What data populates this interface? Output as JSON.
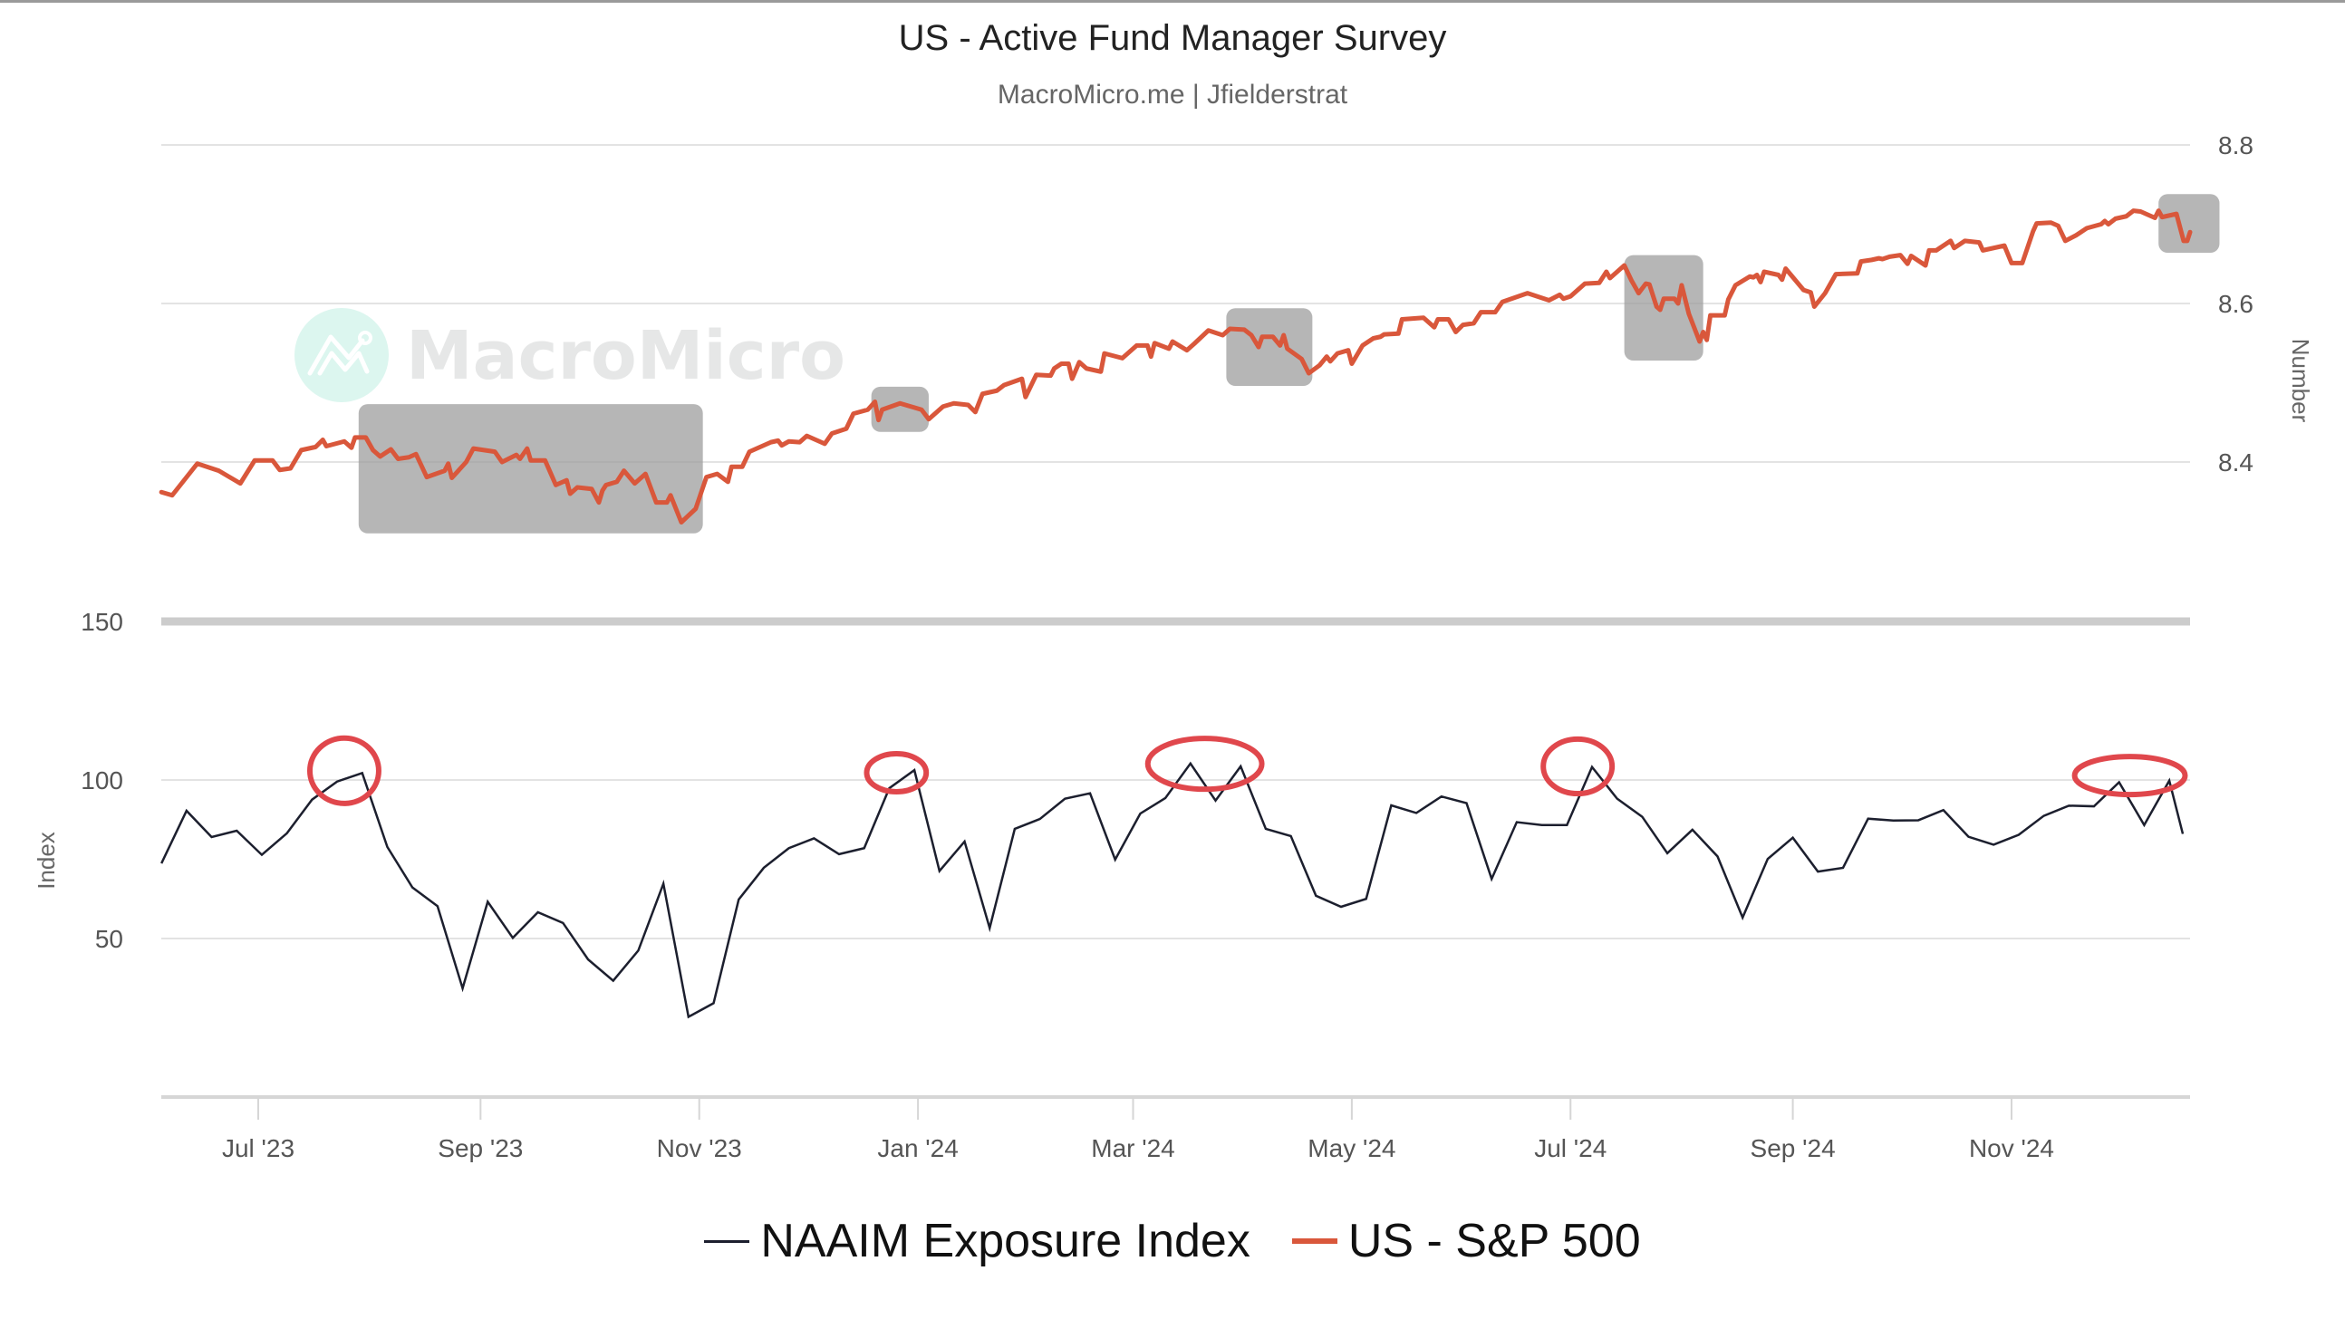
{
  "header": {
    "title": "US - Active Fund Manager Survey",
    "subtitle": "MacroMicro.me | Jfielderstrat"
  },
  "watermark": {
    "text": "MacroMicro",
    "icon": "macromicro-logo-icon"
  },
  "legend": [
    {
      "label": "NAAIM Exposure Index",
      "color": "#1c1f2e"
    },
    {
      "label": "US - S&P 500",
      "color": "#d9573b"
    }
  ],
  "chart_data": {
    "type": "line",
    "title": "US - Active Fund Manager Survey",
    "subtitle": "MacroMicro.me | Jfielderstrat",
    "x_axis": {
      "type": "date",
      "origin_date": "2023-07-01",
      "unit": "days since origin_date",
      "range_days": [
        -27,
        540
      ],
      "ticks": [
        {
          "label": "Jul '23",
          "day": 0
        },
        {
          "label": "Sep '23",
          "day": 62
        },
        {
          "label": "Nov '23",
          "day": 123
        },
        {
          "label": "Jan '24",
          "day": 184
        },
        {
          "label": "Mar '24",
          "day": 244
        },
        {
          "label": "May '24",
          "day": 305
        },
        {
          "label": "Jul '24",
          "day": 366
        },
        {
          "label": "Sep '24",
          "day": 428
        },
        {
          "label": "Nov '24",
          "day": 489
        }
      ]
    },
    "panes": [
      {
        "name": "top",
        "axis_side": "right",
        "ylabel": "Number",
        "ylim": [
          8.3,
          8.8
        ],
        "yticks": [
          {
            "label": "8.8",
            "value": 8.8
          },
          {
            "label": "8.6",
            "value": 8.6
          },
          {
            "label": "8.4",
            "value": 8.4
          }
        ],
        "grid": true
      },
      {
        "name": "bottom",
        "axis_side": "left",
        "ylabel": "Index",
        "ylim": [
          0,
          150
        ],
        "yticks": [
          {
            "label": "150",
            "value": 150
          },
          {
            "label": "100",
            "value": 100
          },
          {
            "label": "50",
            "value": 50
          }
        ],
        "grid": true
      }
    ],
    "series": [
      {
        "name": "NAAIM Exposure Index",
        "pane": "bottom",
        "color": "#1c1f2e",
        "start_day": -27,
        "step_days": 7,
        "values": [
          73.7,
          90.3,
          82.0,
          84.0,
          76.4,
          83.2,
          93.8,
          99.5,
          102.2,
          78.9,
          66.1,
          60.2,
          34.3,
          61.6,
          50.2,
          58.3,
          54.9,
          43.4,
          36.7,
          46.2,
          67.3,
          25.3,
          29.6,
          62.3,
          72.3,
          78.5,
          81.6,
          76.6,
          78.5,
          97.4,
          103.1,
          71.3,
          80.6,
          53.3,
          84.6,
          87.7,
          94.1,
          95.8,
          74.9,
          89.4,
          94.3,
          105.2,
          93.5,
          104.3,
          84.6,
          82.3,
          63.5,
          60.0,
          62.5,
          92.0,
          89.6,
          94.8,
          92.7,
          68.8,
          86.7,
          85.8,
          85.8,
          104.1,
          94.1,
          88.4,
          76.9,
          84.3,
          75.9,
          56.6,
          75.1,
          81.8,
          71.1,
          72.3,
          87.8,
          87.2,
          87.3,
          90.5,
          82.1,
          79.6,
          82.7,
          88.7,
          91.9,
          91.7,
          99.3,
          85.8,
          99.8,
          83.0
        ]
      },
      {
        "name": "US - S&P 500",
        "pane": "top",
        "color": "#d9573b",
        "points": [
          [
            -27,
            8.362
          ],
          [
            -24,
            8.358
          ],
          [
            -17,
            8.398
          ],
          [
            -11,
            8.389
          ],
          [
            -5,
            8.373
          ],
          [
            -1,
            8.402
          ],
          [
            4,
            8.402
          ],
          [
            6,
            8.39
          ],
          [
            9,
            8.392
          ],
          [
            12,
            8.415
          ],
          [
            16,
            8.419
          ],
          [
            18,
            8.428
          ],
          [
            19,
            8.42
          ],
          [
            24,
            8.426
          ],
          [
            26,
            8.418
          ],
          [
            27,
            8.431
          ],
          [
            30,
            8.431
          ],
          [
            32,
            8.415
          ],
          [
            34,
            8.407
          ],
          [
            37,
            8.416
          ],
          [
            39,
            8.404
          ],
          [
            42,
            8.406
          ],
          [
            44,
            8.41
          ],
          [
            47,
            8.381
          ],
          [
            52,
            8.389
          ],
          [
            53,
            8.398
          ],
          [
            54,
            8.38
          ],
          [
            58,
            8.4
          ],
          [
            60,
            8.417
          ],
          [
            66,
            8.413
          ],
          [
            68,
            8.4
          ],
          [
            72,
            8.409
          ],
          [
            73,
            8.404
          ],
          [
            75,
            8.417
          ],
          [
            76,
            8.402
          ],
          [
            80,
            8.402
          ],
          [
            83,
            8.371
          ],
          [
            86,
            8.377
          ],
          [
            87,
            8.36
          ],
          [
            89,
            8.368
          ],
          [
            93,
            8.366
          ],
          [
            95,
            8.349
          ],
          [
            96,
            8.364
          ],
          [
            97,
            8.371
          ],
          [
            100,
            8.375
          ],
          [
            102,
            8.389
          ],
          [
            105,
            8.373
          ],
          [
            108,
            8.385
          ],
          [
            111,
            8.349
          ],
          [
            114,
            8.349
          ],
          [
            115,
            8.358
          ],
          [
            118,
            8.324
          ],
          [
            122,
            8.341
          ],
          [
            125,
            8.381
          ],
          [
            128,
            8.385
          ],
          [
            131,
            8.375
          ],
          [
            132,
            8.394
          ],
          [
            135,
            8.394
          ],
          [
            137,
            8.413
          ],
          [
            140,
            8.419
          ],
          [
            143,
            8.425
          ],
          [
            145,
            8.427
          ],
          [
            146,
            8.421
          ],
          [
            148,
            8.426
          ],
          [
            151,
            8.425
          ],
          [
            153,
            8.433
          ],
          [
            158,
            8.423
          ],
          [
            160,
            8.436
          ],
          [
            164,
            8.442
          ],
          [
            166,
            8.461
          ],
          [
            170,
            8.466
          ],
          [
            172,
            8.476
          ],
          [
            173,
            8.453
          ],
          [
            174,
            8.466
          ],
          [
            179,
            8.474
          ],
          [
            185,
            8.466
          ],
          [
            187,
            8.454
          ],
          [
            191,
            8.47
          ],
          [
            194,
            8.474
          ],
          [
            198,
            8.472
          ],
          [
            200,
            8.463
          ],
          [
            202,
            8.486
          ],
          [
            206,
            8.49
          ],
          [
            208,
            8.497
          ],
          [
            213,
            8.505
          ],
          [
            214,
            8.482
          ],
          [
            217,
            8.51
          ],
          [
            221,
            8.509
          ],
          [
            222,
            8.518
          ],
          [
            224,
            8.524
          ],
          [
            226,
            8.524
          ],
          [
            227,
            8.505
          ],
          [
            229,
            8.526
          ],
          [
            231,
            8.518
          ],
          [
            235,
            8.514
          ],
          [
            236,
            8.537
          ],
          [
            241,
            8.531
          ],
          [
            242,
            8.535
          ],
          [
            245,
            8.547
          ],
          [
            248,
            8.547
          ],
          [
            249,
            8.533
          ],
          [
            250,
            8.55
          ],
          [
            254,
            8.543
          ],
          [
            255,
            8.552
          ],
          [
            259,
            8.541
          ],
          [
            261,
            8.549
          ],
          [
            265,
            8.566
          ],
          [
            269,
            8.56
          ],
          [
            271,
            8.568
          ],
          [
            275,
            8.567
          ],
          [
            277,
            8.56
          ],
          [
            279,
            8.545
          ],
          [
            280,
            8.558
          ],
          [
            283,
            8.558
          ],
          [
            285,
            8.547
          ],
          [
            286,
            8.56
          ],
          [
            287,
            8.543
          ],
          [
            291,
            8.53
          ],
          [
            293,
            8.512
          ],
          [
            296,
            8.522
          ],
          [
            298,
            8.533
          ],
          [
            299,
            8.527
          ],
          [
            301,
            8.537
          ],
          [
            304,
            8.541
          ],
          [
            305,
            8.524
          ],
          [
            308,
            8.547
          ],
          [
            311,
            8.556
          ],
          [
            313,
            8.558
          ],
          [
            314,
            8.561
          ],
          [
            318,
            8.562
          ],
          [
            319,
            8.58
          ],
          [
            325,
            8.582
          ],
          [
            328,
            8.57
          ],
          [
            329,
            8.58
          ],
          [
            332,
            8.58
          ],
          [
            334,
            8.564
          ],
          [
            336,
            8.573
          ],
          [
            339,
            8.575
          ],
          [
            341,
            8.589
          ],
          [
            345,
            8.589
          ],
          [
            347,
            8.602
          ],
          [
            354,
            8.613
          ],
          [
            360,
            8.604
          ],
          [
            363,
            8.611
          ],
          [
            364,
            8.606
          ],
          [
            366,
            8.609
          ],
          [
            370,
            8.625
          ],
          [
            374,
            8.626
          ],
          [
            376,
            8.64
          ],
          [
            377,
            8.632
          ],
          [
            381,
            8.648
          ],
          [
            383,
            8.629
          ],
          [
            385,
            8.613
          ],
          [
            387,
            8.625
          ],
          [
            388,
            8.624
          ],
          [
            390,
            8.596
          ],
          [
            391,
            8.592
          ],
          [
            392,
            8.606
          ],
          [
            395,
            8.606
          ],
          [
            396,
            8.6
          ],
          [
            397,
            8.623
          ],
          [
            399,
            8.587
          ],
          [
            402,
            8.552
          ],
          [
            403,
            8.564
          ],
          [
            404,
            8.554
          ],
          [
            405,
            8.585
          ],
          [
            409,
            8.585
          ],
          [
            410,
            8.605
          ],
          [
            412,
            8.623
          ],
          [
            416,
            8.634
          ],
          [
            417,
            8.633
          ],
          [
            418,
            8.636
          ],
          [
            419,
            8.627
          ],
          [
            420,
            8.64
          ],
          [
            424,
            8.636
          ],
          [
            425,
            8.63
          ],
          [
            426,
            8.644
          ],
          [
            431,
            8.617
          ],
          [
            433,
            8.614
          ],
          [
            434,
            8.596
          ],
          [
            437,
            8.613
          ],
          [
            440,
            8.637
          ],
          [
            446,
            8.638
          ],
          [
            447,
            8.653
          ],
          [
            450,
            8.655
          ],
          [
            452,
            8.657
          ],
          [
            453,
            8.656
          ],
          [
            455,
            8.659
          ],
          [
            458,
            8.661
          ],
          [
            460,
            8.65
          ],
          [
            461,
            8.66
          ],
          [
            465,
            8.648
          ],
          [
            466,
            8.667
          ],
          [
            468,
            8.667
          ],
          [
            472,
            8.679
          ],
          [
            473,
            8.67
          ],
          [
            476,
            8.679
          ],
          [
            480,
            8.677
          ],
          [
            481,
            8.667
          ],
          [
            487,
            8.673
          ],
          [
            489,
            8.651
          ],
          [
            492,
            8.651
          ],
          [
            495,
            8.691
          ],
          [
            496,
            8.701
          ],
          [
            500,
            8.702
          ],
          [
            502,
            8.698
          ],
          [
            504,
            8.679
          ],
          [
            507,
            8.686
          ],
          [
            510,
            8.695
          ],
          [
            514,
            8.7
          ],
          [
            515,
            8.704
          ],
          [
            516,
            8.7
          ],
          [
            518,
            8.707
          ],
          [
            521,
            8.71
          ],
          [
            523,
            8.717
          ],
          [
            525,
            8.716
          ],
          [
            529,
            8.708
          ],
          [
            530,
            8.717
          ],
          [
            531,
            8.709
          ],
          [
            535,
            8.713
          ],
          [
            537,
            8.679
          ],
          [
            538,
            8.679
          ],
          [
            539,
            8.69
          ]
        ]
      }
    ],
    "annotations": {
      "highlight_boxes": [
        {
          "pane": "top",
          "day_range": [
            28,
            124
          ],
          "value_range": [
            8.31,
            8.473
          ]
        },
        {
          "pane": "top",
          "day_range": [
            171,
            187
          ],
          "value_range": [
            8.438,
            8.495
          ]
        },
        {
          "pane": "top",
          "day_range": [
            270,
            294
          ],
          "value_range": [
            8.496,
            8.594
          ]
        },
        {
          "pane": "top",
          "day_range": [
            381,
            403
          ],
          "value_range": [
            8.528,
            8.661
          ]
        },
        {
          "pane": "top",
          "day_range": [
            530,
            547
          ],
          "value_range": [
            8.664,
            8.738
          ]
        }
      ],
      "circled_peaks": [
        {
          "pane": "bottom",
          "center_day": 24,
          "center_value": 102.9,
          "half_width_days": 9.6,
          "half_height_value": 10.3
        },
        {
          "pane": "bottom",
          "center_day": 178,
          "center_value": 102.3,
          "half_width_days": 8.3,
          "half_height_value": 6.0
        },
        {
          "pane": "bottom",
          "center_day": 264,
          "center_value": 105.1,
          "half_width_days": 15.9,
          "half_height_value": 8.0
        },
        {
          "pane": "bottom",
          "center_day": 368,
          "center_value": 104.3,
          "half_width_days": 9.6,
          "half_height_value": 8.6
        },
        {
          "pane": "bottom",
          "center_day": 522,
          "center_value": 101.4,
          "half_width_days": 15.4,
          "half_height_value": 6.0
        }
      ],
      "box_color": "#9e9e9e",
      "circle_color": "#e0474c"
    },
    "legend_position": "bottom-center"
  }
}
